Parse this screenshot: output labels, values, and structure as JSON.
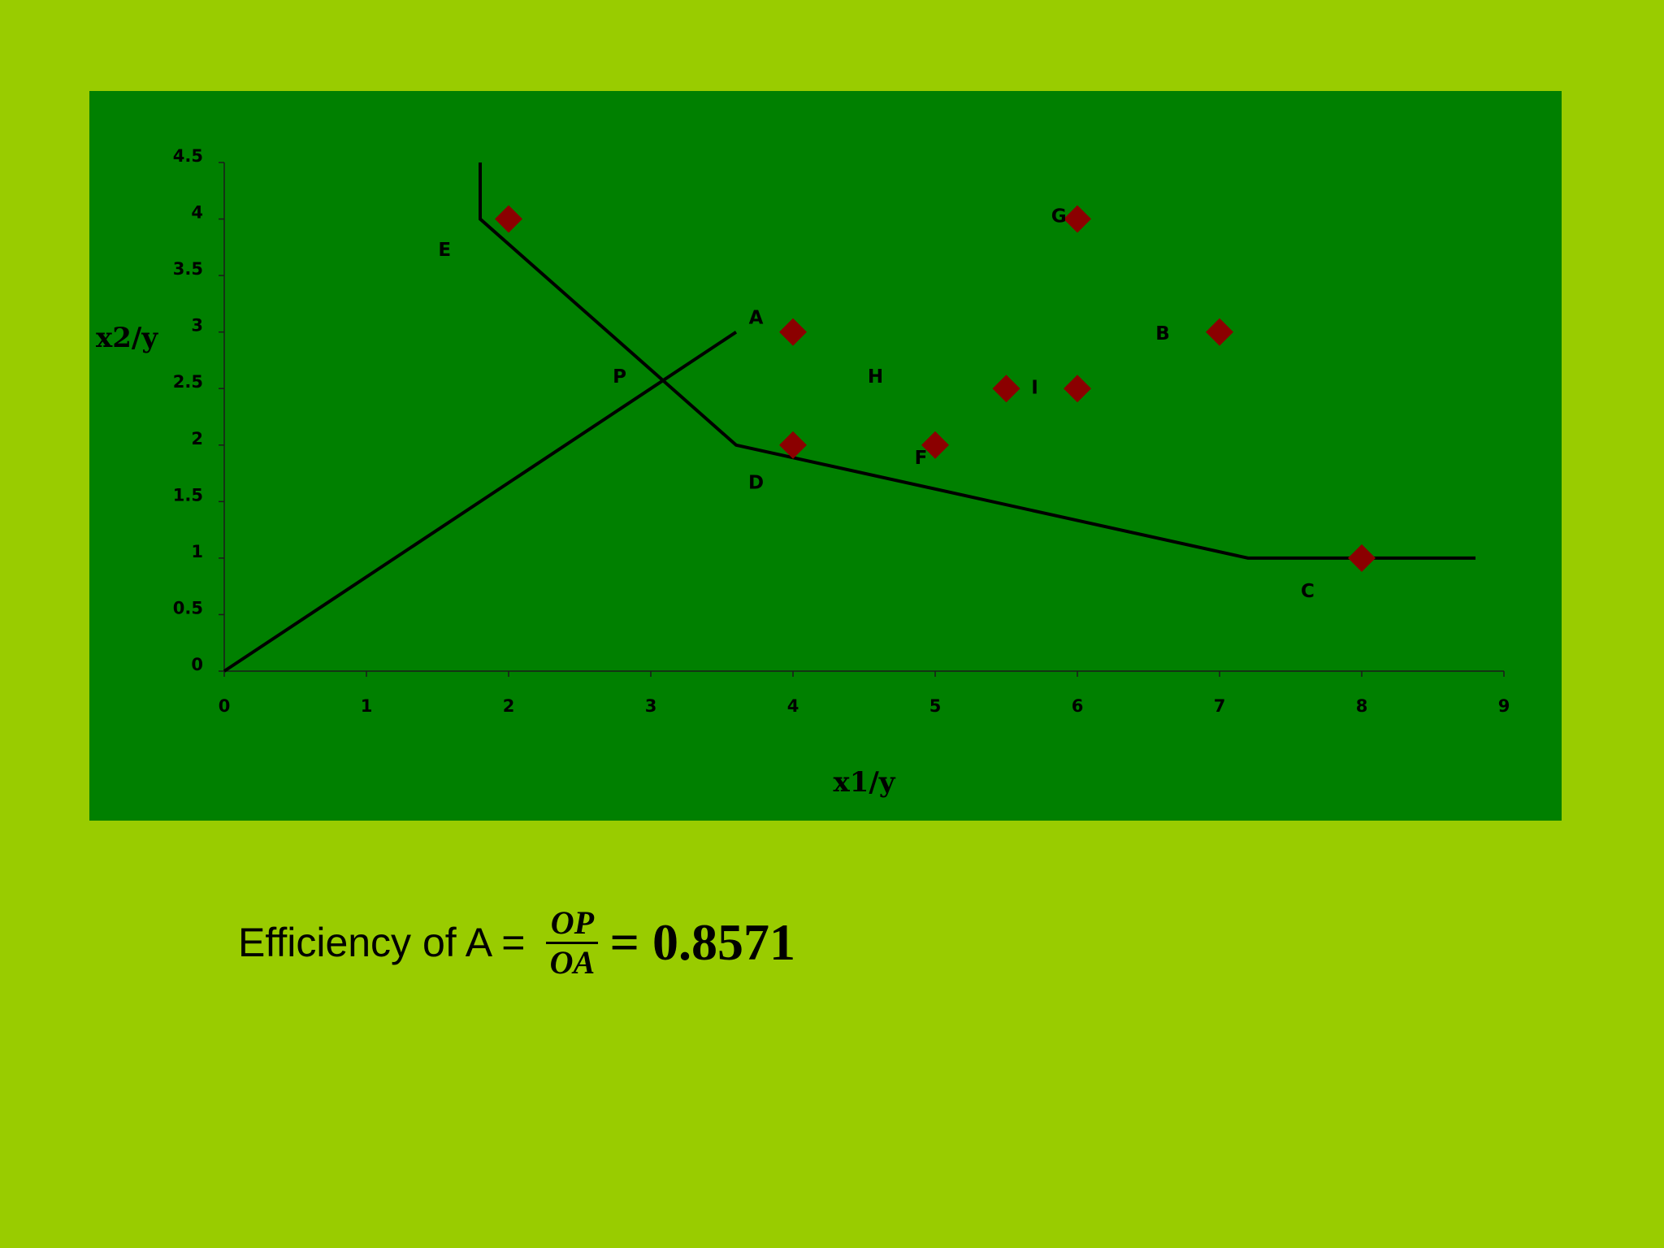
{
  "chart_data": {
    "type": "scatter",
    "title": "",
    "xlabel": "x1/y",
    "ylabel": "x2/y",
    "xlim": [
      0,
      9
    ],
    "ylim": [
      0,
      4.5
    ],
    "x_ticks": [
      "0",
      "1",
      "2",
      "3",
      "4",
      "5",
      "6",
      "7",
      "8",
      "9"
    ],
    "y_ticks": [
      "0",
      "0.5",
      "1",
      "1.5",
      "2",
      "2.5",
      "3",
      "3.5",
      "4",
      "4.5"
    ],
    "grid": false,
    "legend": "none",
    "marker_color": "#8b0000",
    "line_color": "#000000",
    "points": [
      {
        "x": 2,
        "y": 4
      },
      {
        "x": 4,
        "y": 3
      },
      {
        "x": 4,
        "y": 2
      },
      {
        "x": 5,
        "y": 2
      },
      {
        "x": 5.5,
        "y": 2.5
      },
      {
        "x": 6,
        "y": 2.5
      },
      {
        "x": 6,
        "y": 4
      },
      {
        "x": 7,
        "y": 3
      },
      {
        "x": 8,
        "y": 1
      }
    ],
    "frontier": [
      {
        "x": 1.8,
        "y": 4.5
      },
      {
        "x": 1.8,
        "y": 4
      },
      {
        "x": 3.6,
        "y": 2
      },
      {
        "x": 7.2,
        "y": 1
      },
      {
        "x": 8.8,
        "y": 1
      }
    ],
    "ray": [
      {
        "x": 0,
        "y": 0
      },
      {
        "x": 3.6,
        "y": 3
      }
    ],
    "annotations": [
      {
        "text": "E",
        "x": 1.55,
        "y": 3.72
      },
      {
        "text": "A",
        "x": 3.74,
        "y": 3.12
      },
      {
        "text": "P",
        "x": 2.78,
        "y": 2.6
      },
      {
        "text": "H",
        "x": 4.58,
        "y": 2.6
      },
      {
        "text": "I",
        "x": 5.7,
        "y": 2.5
      },
      {
        "text": "G",
        "x": 5.87,
        "y": 4.02
      },
      {
        "text": "B",
        "x": 6.6,
        "y": 2.98
      },
      {
        "text": "D",
        "x": 3.74,
        "y": 1.66
      },
      {
        "text": "F",
        "x": 4.9,
        "y": 1.88
      },
      {
        "text": "C",
        "x": 7.62,
        "y": 0.7
      }
    ]
  },
  "formula": {
    "label": "Efficiency of A =",
    "numerator": "OP",
    "denominator": "OA",
    "result": "= 0.8571"
  }
}
